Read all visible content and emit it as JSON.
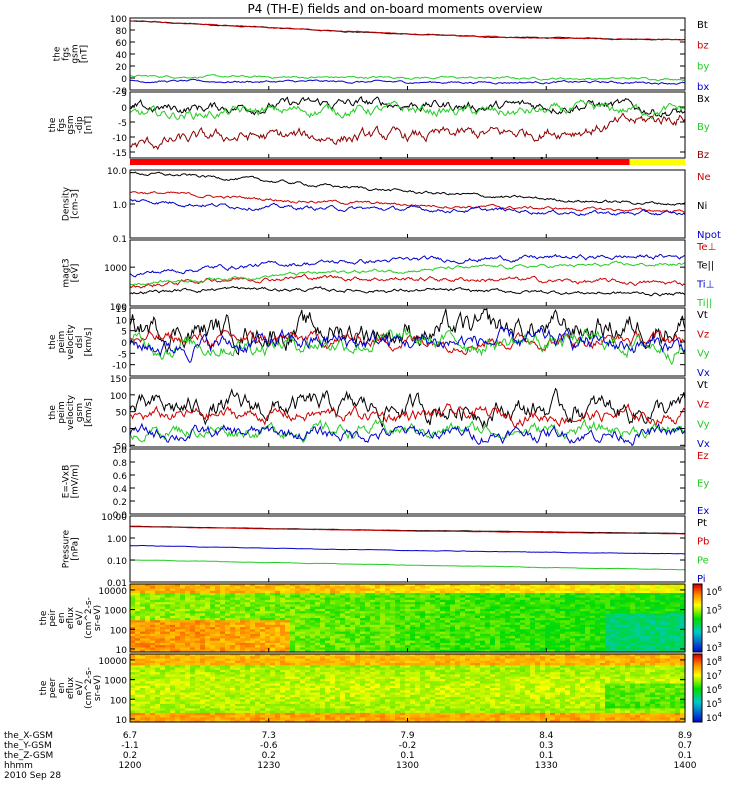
{
  "title": "P4 (TH-E) fields and on-board moments overview",
  "colors": {
    "black": "#000000",
    "red": "#cc0000",
    "darkred": "#8b0000",
    "green": "#22cc22",
    "brightgreen": "#33ee33",
    "blue": "#0000cc",
    "yellow": "#ffff00",
    "bar_red": "#ff0000"
  },
  "chart_data": [
    {
      "type": "line",
      "id": "fgs_gsm",
      "ylabel": [
        "the",
        "fgs",
        "gsm",
        "[nT]"
      ],
      "ylim": [
        -20,
        100
      ],
      "yticks": [
        100,
        80,
        60,
        40,
        20,
        0,
        -20
      ],
      "series": [
        {
          "name": "Bt",
          "color": "#000000",
          "values": [
            95,
            88,
            80,
            73,
            68,
            66,
            64
          ]
        },
        {
          "name": "bz",
          "color": "#cc0000",
          "values": [
            95,
            88,
            80,
            73,
            68,
            66,
            64
          ]
        },
        {
          "name": "by",
          "color": "#22cc22",
          "values": [
            3,
            2,
            1,
            1,
            0,
            -1,
            -1
          ]
        },
        {
          "name": "bx",
          "color": "#0000cc",
          "values": [
            -5,
            -6,
            -6,
            -7,
            -7,
            -7,
            -8
          ]
        }
      ]
    },
    {
      "type": "line",
      "id": "fgs_gsm_dip",
      "ylabel": [
        "the",
        "fgs",
        "gsm",
        "-dip",
        "[nT]"
      ],
      "ylim": [
        -17,
        5
      ],
      "yticks": [
        5,
        0,
        -5,
        -10,
        -15
      ],
      "series": [
        {
          "name": "Bx",
          "color": "#000000",
          "values": [
            -1,
            0,
            1,
            1,
            0,
            1,
            -2
          ]
        },
        {
          "name": "By",
          "color": "#22cc22",
          "values": [
            -3,
            -2,
            -1,
            -1,
            -2,
            -1,
            -1
          ]
        },
        {
          "name": "Bz",
          "color": "#8b0000",
          "values": [
            -13,
            -10,
            -10,
            -10,
            -9,
            -7,
            -3
          ]
        }
      ]
    },
    {
      "type": "line",
      "id": "density",
      "ylabel": [
        "Density",
        "[cm-3]"
      ],
      "scale": "log",
      "ylim": [
        0.1,
        10
      ],
      "yticks": [
        "10.0",
        "1.0",
        "0.1"
      ],
      "series": [
        {
          "name": "Ne",
          "color": "#cc0000",
          "values": [
            2.3,
            1.6,
            1.2,
            0.95,
            0.8,
            0.7,
            0.62
          ]
        },
        {
          "name": "Ni",
          "color": "#000000",
          "values": [
            8.0,
            6.0,
            3.6,
            2.3,
            1.6,
            1.2,
            1.0
          ]
        },
        {
          "name": "Npot",
          "color": "#0000cc",
          "values": [
            1.3,
            0.9,
            0.75,
            0.7,
            0.65,
            0.55,
            0.5
          ]
        }
      ]
    },
    {
      "type": "line",
      "id": "temperature",
      "ylabel": [
        "magt3",
        "[eV]"
      ],
      "scale": "log",
      "ylim": [
        100,
        5000
      ],
      "yticks": [
        "1000",
        "100"
      ],
      "series": [
        {
          "name": "Te⊥",
          "color": "#cc0000",
          "values": [
            300,
            500,
            550,
            500,
            480,
            420,
            380
          ]
        },
        {
          "name": "Te||",
          "color": "#000000",
          "values": [
            220,
            280,
            260,
            250,
            240,
            220,
            200
          ]
        },
        {
          "name": "Ti⊥",
          "color": "#0000cc",
          "values": [
            650,
            1000,
            1300,
            1500,
            1700,
            1800,
            1900
          ]
        },
        {
          "name": "Ti||",
          "color": "#22cc22",
          "values": [
            380,
            520,
            700,
            850,
            1000,
            1100,
            1200
          ]
        }
      ]
    },
    {
      "type": "line",
      "id": "peim_velocity_dsl",
      "ylabel": [
        "the",
        "peim",
        "velocity",
        "dsl",
        "[km/s]"
      ],
      "ylim": [
        -15,
        15
      ],
      "yticks": [
        15,
        10,
        5,
        0,
        -5,
        -10
      ],
      "series": [
        {
          "name": "Vt",
          "color": "#000000",
          "values": [
            6,
            5,
            5,
            5,
            5,
            6,
            8
          ]
        },
        {
          "name": "Vz",
          "color": "#cc0000",
          "values": [
            1,
            1,
            1,
            1,
            1,
            1,
            1
          ]
        },
        {
          "name": "Vy",
          "color": "#22cc22",
          "values": [
            -1,
            -1,
            0,
            0,
            0,
            0,
            -2
          ]
        },
        {
          "name": "Vx",
          "color": "#0000cc",
          "values": [
            -2,
            -1,
            0,
            0,
            0,
            0,
            -2
          ]
        }
      ]
    },
    {
      "type": "line",
      "id": "peim_velocity_gsm",
      "ylabel": [
        "the",
        "peim",
        "velocity",
        "gsm",
        "[km/s]"
      ],
      "ylim": [
        -55,
        150
      ],
      "yticks": [
        150,
        100,
        50,
        0,
        -50
      ],
      "series": [
        {
          "name": "Vt",
          "color": "#000000",
          "values": [
            55,
            60,
            62,
            60,
            60,
            58,
            55
          ]
        },
        {
          "name": "Vz",
          "color": "#cc0000",
          "values": [
            35,
            40,
            40,
            40,
            40,
            38,
            35
          ]
        },
        {
          "name": "Vy",
          "color": "#22cc22",
          "values": [
            -5,
            -5,
            -5,
            -5,
            -5,
            -5,
            -5
          ]
        },
        {
          "name": "Vx",
          "color": "#0000cc",
          "values": [
            -15,
            -15,
            -15,
            -15,
            -15,
            -15,
            -15
          ]
        }
      ]
    },
    {
      "type": "line",
      "id": "efield",
      "ylabel": [
        "E=-VxB",
        "[mV/m]"
      ],
      "ylim": [
        0,
        1
      ],
      "yticks": [
        "1.0",
        "0.8",
        "0.6",
        "0.4",
        "0.2",
        "0.0"
      ],
      "series": [
        {
          "name": "Ez",
          "color": "#cc0000",
          "values": []
        },
        {
          "name": "Ey",
          "color": "#22cc22",
          "values": []
        },
        {
          "name": "Ex",
          "color": "#0000cc",
          "values": []
        }
      ]
    },
    {
      "type": "line",
      "id": "pressure",
      "ylabel": [
        "Pressure",
        "[nPa]"
      ],
      "scale": "log",
      "ylim": [
        0.01,
        10
      ],
      "yticks": [
        "10.00",
        "1.00",
        "0.10",
        "0.01"
      ],
      "series": [
        {
          "name": "Pt",
          "color": "#000000",
          "values": [
            3.4,
            2.9,
            2.5,
            2.2,
            2.0,
            1.8,
            1.6
          ]
        },
        {
          "name": "Pb",
          "color": "#cc0000",
          "values": [
            3.3,
            2.8,
            2.4,
            2.1,
            1.9,
            1.7,
            1.55
          ]
        },
        {
          "name": "Pe",
          "color": "#22cc22",
          "values": [
            0.1,
            0.085,
            0.07,
            0.058,
            0.05,
            0.042,
            0.036
          ]
        },
        {
          "name": "Pi",
          "color": "#0000cc",
          "values": [
            0.45,
            0.38,
            0.32,
            0.27,
            0.24,
            0.21,
            0.19
          ]
        }
      ]
    },
    {
      "type": "heatmap",
      "id": "peir_en_eflux",
      "ylabel": [
        "the",
        "peir",
        "en",
        "eflux",
        "eV/",
        "(cm^2-s-",
        "sr-eV)"
      ],
      "scale": "log",
      "ylim": [
        7,
        20000
      ],
      "yticks": [
        "10000",
        "1000",
        "100",
        "10"
      ],
      "colorbar": {
        "ticks": [
          "10^6",
          "10^5",
          "10^4",
          "10^3"
        ],
        "range": [
          1000,
          1000000
        ]
      }
    },
    {
      "type": "heatmap",
      "id": "peer_en_eflux",
      "ylabel": [
        "the",
        "peer",
        "en",
        "eflux",
        "eV/",
        "(cm^2-s-",
        "sr-eV)"
      ],
      "scale": "log",
      "ylim": [
        7,
        20000
      ],
      "yticks": [
        "10000",
        "1000",
        "100",
        "10"
      ],
      "colorbar": {
        "ticks": [
          "10^8",
          "10^7",
          "10^6",
          "10^5",
          "10^4"
        ],
        "range": [
          10000,
          100000000
        ]
      }
    }
  ],
  "mode_bar": {
    "segments": [
      {
        "color": "#ff0000",
        "from": 0.0,
        "to": 0.9
      },
      {
        "color": "#ffff00",
        "from": 0.9,
        "to": 1.0
      }
    ],
    "ticks": [
      0.45,
      0.65,
      0.69,
      0.74,
      0.84
    ]
  },
  "xaxis": {
    "row_labels": [
      "the_X-GSM",
      "the_Y-GSM",
      "the_Z-GSM",
      "hhmm",
      "2010 Sep 28"
    ],
    "rows": [
      [
        "6.7",
        "7.3",
        "7.9",
        "8.4",
        "8.9"
      ],
      [
        "-1.1",
        "-0.6",
        "-0.2",
        "0.3",
        "0.7"
      ],
      [
        "0.2",
        "0.2",
        "0.1",
        "0.1",
        "0.1"
      ],
      [
        "1200",
        "1230",
        "1300",
        "1330",
        "1400"
      ]
    ]
  }
}
